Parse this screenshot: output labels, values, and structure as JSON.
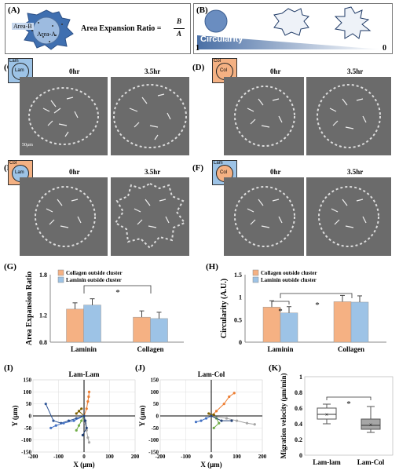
{
  "panels": {
    "A": {
      "label": "(A)",
      "area_b": "Area-B",
      "area_a": "Area-A",
      "formula_text": "Area Expansion Ratio =",
      "num": "B",
      "den": "A"
    },
    "B": {
      "label": "(B)",
      "title": "Circularity",
      "left": "1",
      "right": "0"
    },
    "C": {
      "label": "(C)",
      "outer": "Lam",
      "inner": "Lam",
      "t0": "0hr",
      "t1": "3.5hr",
      "scale": "50μm"
    },
    "D": {
      "label": "(D)",
      "outer": "Col",
      "inner": "Col",
      "t0": "0hr",
      "t1": "3.5hr"
    },
    "E": {
      "label": "(E)",
      "outer": "Col",
      "inner": "Lam",
      "t0": "0hr",
      "t1": "3.5hr"
    },
    "F": {
      "label": "(F)",
      "outer": "Lam",
      "inner": "Col",
      "t0": "0hr",
      "t1": "3.5hr"
    },
    "G": {
      "label": "(G)"
    },
    "H": {
      "label": "(H)"
    },
    "I": {
      "label": "(I)"
    },
    "J": {
      "label": "(J)"
    },
    "K": {
      "label": "(K)"
    }
  },
  "colors": {
    "collagen": "#f5b183",
    "laminin": "#9dc3e6",
    "blue_bg": "#9dc3e6",
    "orange_bg": "#f4b183"
  },
  "chart_data": [
    {
      "id": "G",
      "type": "bar",
      "ylabel": "Area Expansion Ratio",
      "categories": [
        "Laminin",
        "Collagen"
      ],
      "series": [
        {
          "name": "Collagen outside cluster",
          "values": [
            1.29,
            1.17
          ]
        },
        {
          "name": "Laminin outside cluster",
          "values": [
            1.35,
            1.15
          ]
        }
      ],
      "ylim": [
        0.8,
        1.8
      ],
      "yticks": [
        "0.8",
        "1.2",
        "1.8"
      ],
      "significance": "*"
    },
    {
      "id": "H",
      "type": "bar",
      "ylabel": "Circularity (A.U.)",
      "categories": [
        "Laminin",
        "Collagen"
      ],
      "series": [
        {
          "name": "Collagen outside cluster",
          "values": [
            0.78,
            0.9
          ]
        },
        {
          "name": "Laminin outside cluster",
          "values": [
            0.65,
            0.89
          ]
        }
      ],
      "ylim": [
        0,
        1.5
      ],
      "yticks": [
        "0",
        "0.5",
        "1",
        "1.5"
      ],
      "significance": [
        "*",
        "*"
      ]
    },
    {
      "id": "I",
      "type": "line",
      "title": "Lam-Lam",
      "xlabel": "X (μm)",
      "ylabel": "Y (μm)",
      "xlim": [
        -200,
        200
      ],
      "ylim": [
        -150,
        150
      ],
      "xticks": [
        "-200",
        "-100",
        "0",
        "100",
        "200"
      ],
      "yticks": [
        "150",
        "100",
        "50",
        "0",
        "-50",
        "-100",
        "-150"
      ],
      "series": [
        {
          "color": "#2e5597",
          "x": [
            0,
            -30,
            -60,
            -90,
            -120,
            -150
          ],
          "y": [
            0,
            -10,
            -20,
            -30,
            -20,
            50
          ]
        },
        {
          "color": "#4472c4",
          "x": [
            0,
            -40,
            -80,
            -110,
            -130
          ],
          "y": [
            0,
            -20,
            -30,
            -40,
            -50
          ]
        },
        {
          "color": "#ed7d31",
          "x": [
            0,
            10,
            15,
            18,
            20
          ],
          "y": [
            0,
            30,
            60,
            80,
            100
          ]
        },
        {
          "color": "#a5a5a5",
          "x": [
            0,
            5,
            10,
            15,
            20
          ],
          "y": [
            0,
            -30,
            -60,
            -90,
            -110
          ]
        },
        {
          "color": "#70ad47",
          "x": [
            0,
            -10,
            -20,
            -30
          ],
          "y": [
            0,
            -20,
            -40,
            -60
          ]
        },
        {
          "color": "#7f6000",
          "x": [
            0,
            -20,
            -30,
            -10
          ],
          "y": [
            0,
            20,
            10,
            30
          ]
        },
        {
          "color": "#264478",
          "x": [
            0,
            5,
            10,
            -5
          ],
          "y": [
            0,
            -20,
            -50,
            -80
          ]
        }
      ]
    },
    {
      "id": "J",
      "type": "line",
      "title": "Lam-Col",
      "xlabel": "X (μm)",
      "ylabel": "Y (μm)",
      "xlim": [
        -200,
        200
      ],
      "ylim": [
        -150,
        150
      ],
      "xticks": [
        "-200",
        "-100",
        "0",
        "100",
        "200"
      ],
      "yticks": [
        "150",
        "100",
        "50",
        "0",
        "-50",
        "-100",
        "-150"
      ],
      "series": [
        {
          "color": "#ed7d31",
          "x": [
            0,
            20,
            50,
            70,
            90
          ],
          "y": [
            0,
            20,
            50,
            80,
            95
          ]
        },
        {
          "color": "#a5a5a5",
          "x": [
            0,
            60,
            100,
            140,
            170
          ],
          "y": [
            0,
            -10,
            -20,
            -30,
            -35
          ]
        },
        {
          "color": "#4472c4",
          "x": [
            0,
            -20,
            -40,
            -60
          ],
          "y": [
            0,
            -10,
            -20,
            -25
          ]
        },
        {
          "color": "#70ad47",
          "x": [
            0,
            20,
            30,
            10
          ],
          "y": [
            0,
            -10,
            -30,
            -50
          ]
        },
        {
          "color": "#7f6000",
          "x": [
            0,
            -10,
            10
          ],
          "y": [
            0,
            10,
            5
          ]
        },
        {
          "color": "#264478",
          "x": [
            0,
            40,
            80
          ],
          "y": [
            0,
            -20,
            -20
          ]
        }
      ]
    },
    {
      "id": "K",
      "type": "box",
      "ylabel": "Migration velocity (μm/min)",
      "categories": [
        "Lam-lam",
        "Lam-Col"
      ],
      "ylim": [
        0,
        1
      ],
      "yticks": [
        "0",
        "0.2",
        "0.4",
        "0.6",
        "0.8",
        "1"
      ],
      "boxes": [
        {
          "min": 0.4,
          "q1": 0.46,
          "median": 0.52,
          "q3": 0.6,
          "max": 0.65,
          "mean": 0.52,
          "fill": "#ffffff"
        },
        {
          "min": 0.29,
          "q1": 0.33,
          "median": 0.38,
          "q3": 0.46,
          "max": 0.62,
          "mean": 0.39,
          "fill": "#a6a6a6"
        }
      ],
      "significance": "*"
    }
  ]
}
